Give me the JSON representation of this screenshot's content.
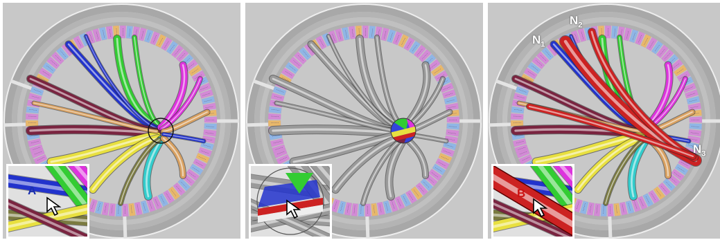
{
  "panels": [
    {
      "id": "a",
      "inset_letter": "A",
      "inset_letter_color": "#1a2fb0",
      "node_labels": []
    },
    {
      "id": "b",
      "inset_letter": "",
      "inset_letter_color": "#000000",
      "node_labels": []
    },
    {
      "id": "c",
      "inset_letter": "B",
      "inset_letter_color": "#cc1111",
      "node_labels": [
        {
          "name": "N",
          "sub": "1"
        },
        {
          "name": "N",
          "sub": "2"
        },
        {
          "name": "N",
          "sub": "3"
        }
      ]
    }
  ],
  "colors": {
    "background": "#c8c8c8",
    "ring_outer": "#8a8a8a",
    "label_pink": "#d38ad6",
    "label_blue": "#8fb6e6",
    "label_orange": "#e8b86a",
    "green": "#33cc33",
    "blue": "#2233cc",
    "magenta": "#dd33dd",
    "maroon": "#7a2440",
    "yellow": "#e8e040",
    "cyan": "#33cccc",
    "olive": "#7a7a40",
    "red": "#cc2222",
    "tan": "#d8a060",
    "gray": "#9a9a9a"
  }
}
